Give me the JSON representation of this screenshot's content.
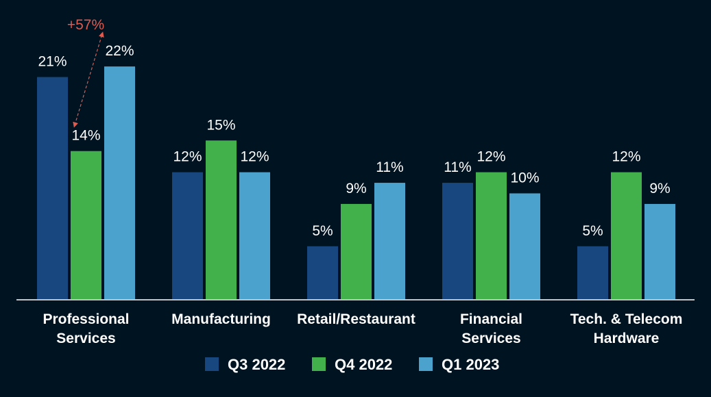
{
  "chart_data": {
    "type": "bar",
    "categories": [
      [
        "Professional",
        "Services"
      ],
      [
        "Manufacturing"
      ],
      [
        "Retail/Restaurant"
      ],
      [
        "Financial",
        "Services"
      ],
      [
        "Tech. & Telecom",
        "Hardware"
      ]
    ],
    "series": [
      {
        "name": "Q3 2022",
        "values": [
          21,
          12,
          5,
          11,
          5
        ],
        "labels": [
          "21%",
          "12%",
          "5%",
          "11%",
          "5%"
        ],
        "color": "#17477e"
      },
      {
        "name": "Q4 2022",
        "values": [
          14,
          15,
          9,
          12,
          12
        ],
        "labels": [
          "14%",
          "15%",
          "9%",
          "12%",
          "12%"
        ],
        "color": "#43b14b"
      },
      {
        "name": "Q1 2023",
        "values": [
          22,
          12,
          11,
          10,
          9
        ],
        "labels": [
          "22%",
          "12%",
          "11%",
          "10%",
          "9%"
        ],
        "color": "#4ba2cd"
      }
    ],
    "ylim": [
      0,
      22
    ],
    "grid": false,
    "legend_position": "bottom-center",
    "annotation": {
      "text": "+57%",
      "from_category": 0,
      "from_series": 1,
      "to_series": 2,
      "color": "#e05a4e"
    },
    "background": "#001321",
    "axis_color": "#ffffff",
    "text_color": "#ffffff"
  }
}
